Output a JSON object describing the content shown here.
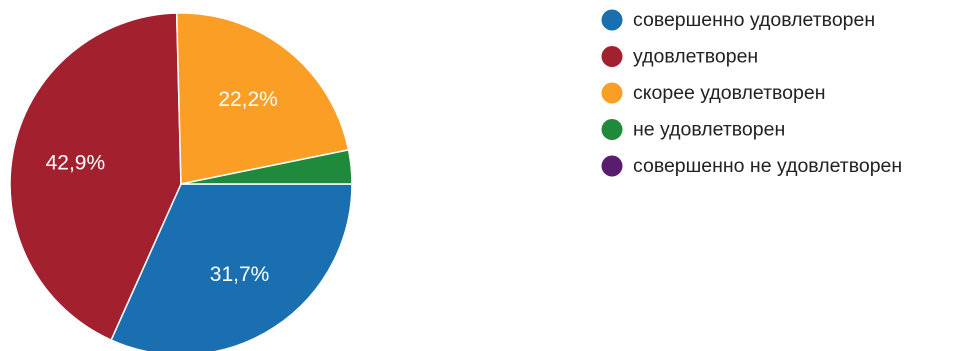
{
  "chart_data": {
    "type": "pie",
    "title": "",
    "legend_position": "right",
    "slices": [
      {
        "label": "совершенно удовлетворен",
        "value": 31.7,
        "display": "31,7%",
        "color": "#1a6fb0"
      },
      {
        "label": "удовлетворен",
        "value": 42.9,
        "display": "42,9%",
        "color": "#a3212f"
      },
      {
        "label": "скорее удовлетворен",
        "value": 22.2,
        "display": "22,2%",
        "color": "#fb9e26"
      },
      {
        "label": "не удовлетворен",
        "value": 3.2,
        "display": "",
        "color": "#1f8a3c"
      },
      {
        "label": "совершенно не удовлетворен",
        "value": 0.0,
        "display": "",
        "color": "#5a1c6e"
      }
    ]
  }
}
